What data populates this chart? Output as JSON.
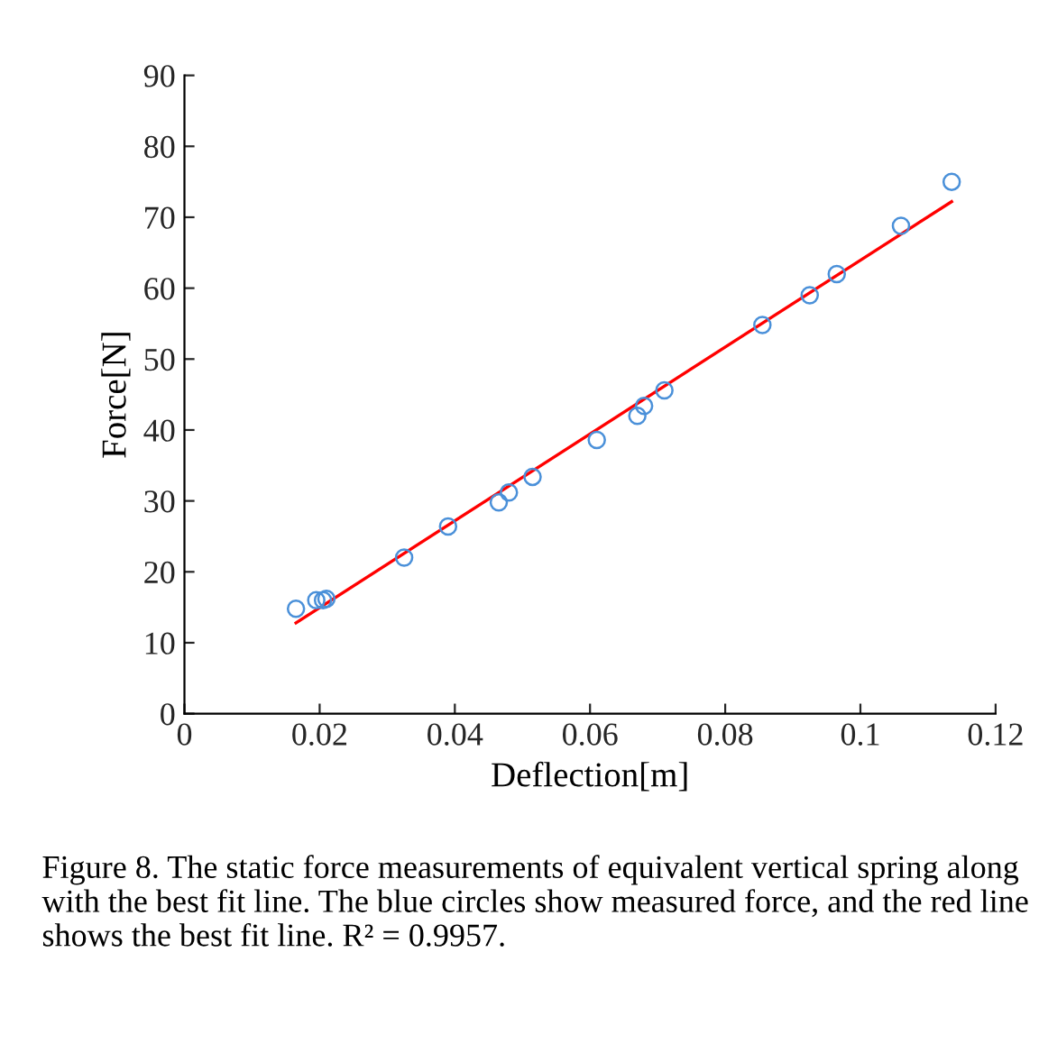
{
  "chart_data": {
    "type": "scatter",
    "xlabel": "Deflection[m]",
    "ylabel": "Force[N]",
    "xlim": [
      0,
      0.12
    ],
    "xticks": [
      0,
      0.02,
      0.04,
      0.06,
      0.08,
      0.1,
      0.12
    ],
    "ylim": [
      0,
      90
    ],
    "yticks": [
      0,
      10,
      20,
      30,
      40,
      50,
      60,
      70,
      80,
      90
    ],
    "grid": false,
    "legend": false,
    "series": [
      {
        "marker": "circle",
        "color": "#4a90d9",
        "x": [
          0.0165,
          0.0195,
          0.0205,
          0.021,
          0.0325,
          0.039,
          0.0465,
          0.048,
          0.0515,
          0.061,
          0.067,
          0.068,
          0.071,
          0.0855,
          0.0925,
          0.0965,
          0.106,
          0.1135
        ],
        "values": [
          14.8,
          16,
          16,
          16.2,
          22,
          26.4,
          29.8,
          31.2,
          33.4,
          38.6,
          42,
          43.4,
          45.6,
          54.8,
          59,
          62,
          68.8,
          75
        ]
      },
      {
        "type": "line",
        "marker": "none",
        "color": "#ff0000",
        "line_style": "solid",
        "x": [
          0.0165,
          0.1135
        ],
        "values": [
          12.8,
          72.2
        ]
      }
    ],
    "annotations": [
      "Figure 8. The static force measurements of equivalent vertical spring along with the best fit line. The blue circles show measured force, and the red line shows the best fit line. R² = 0.9957."
    ]
  }
}
